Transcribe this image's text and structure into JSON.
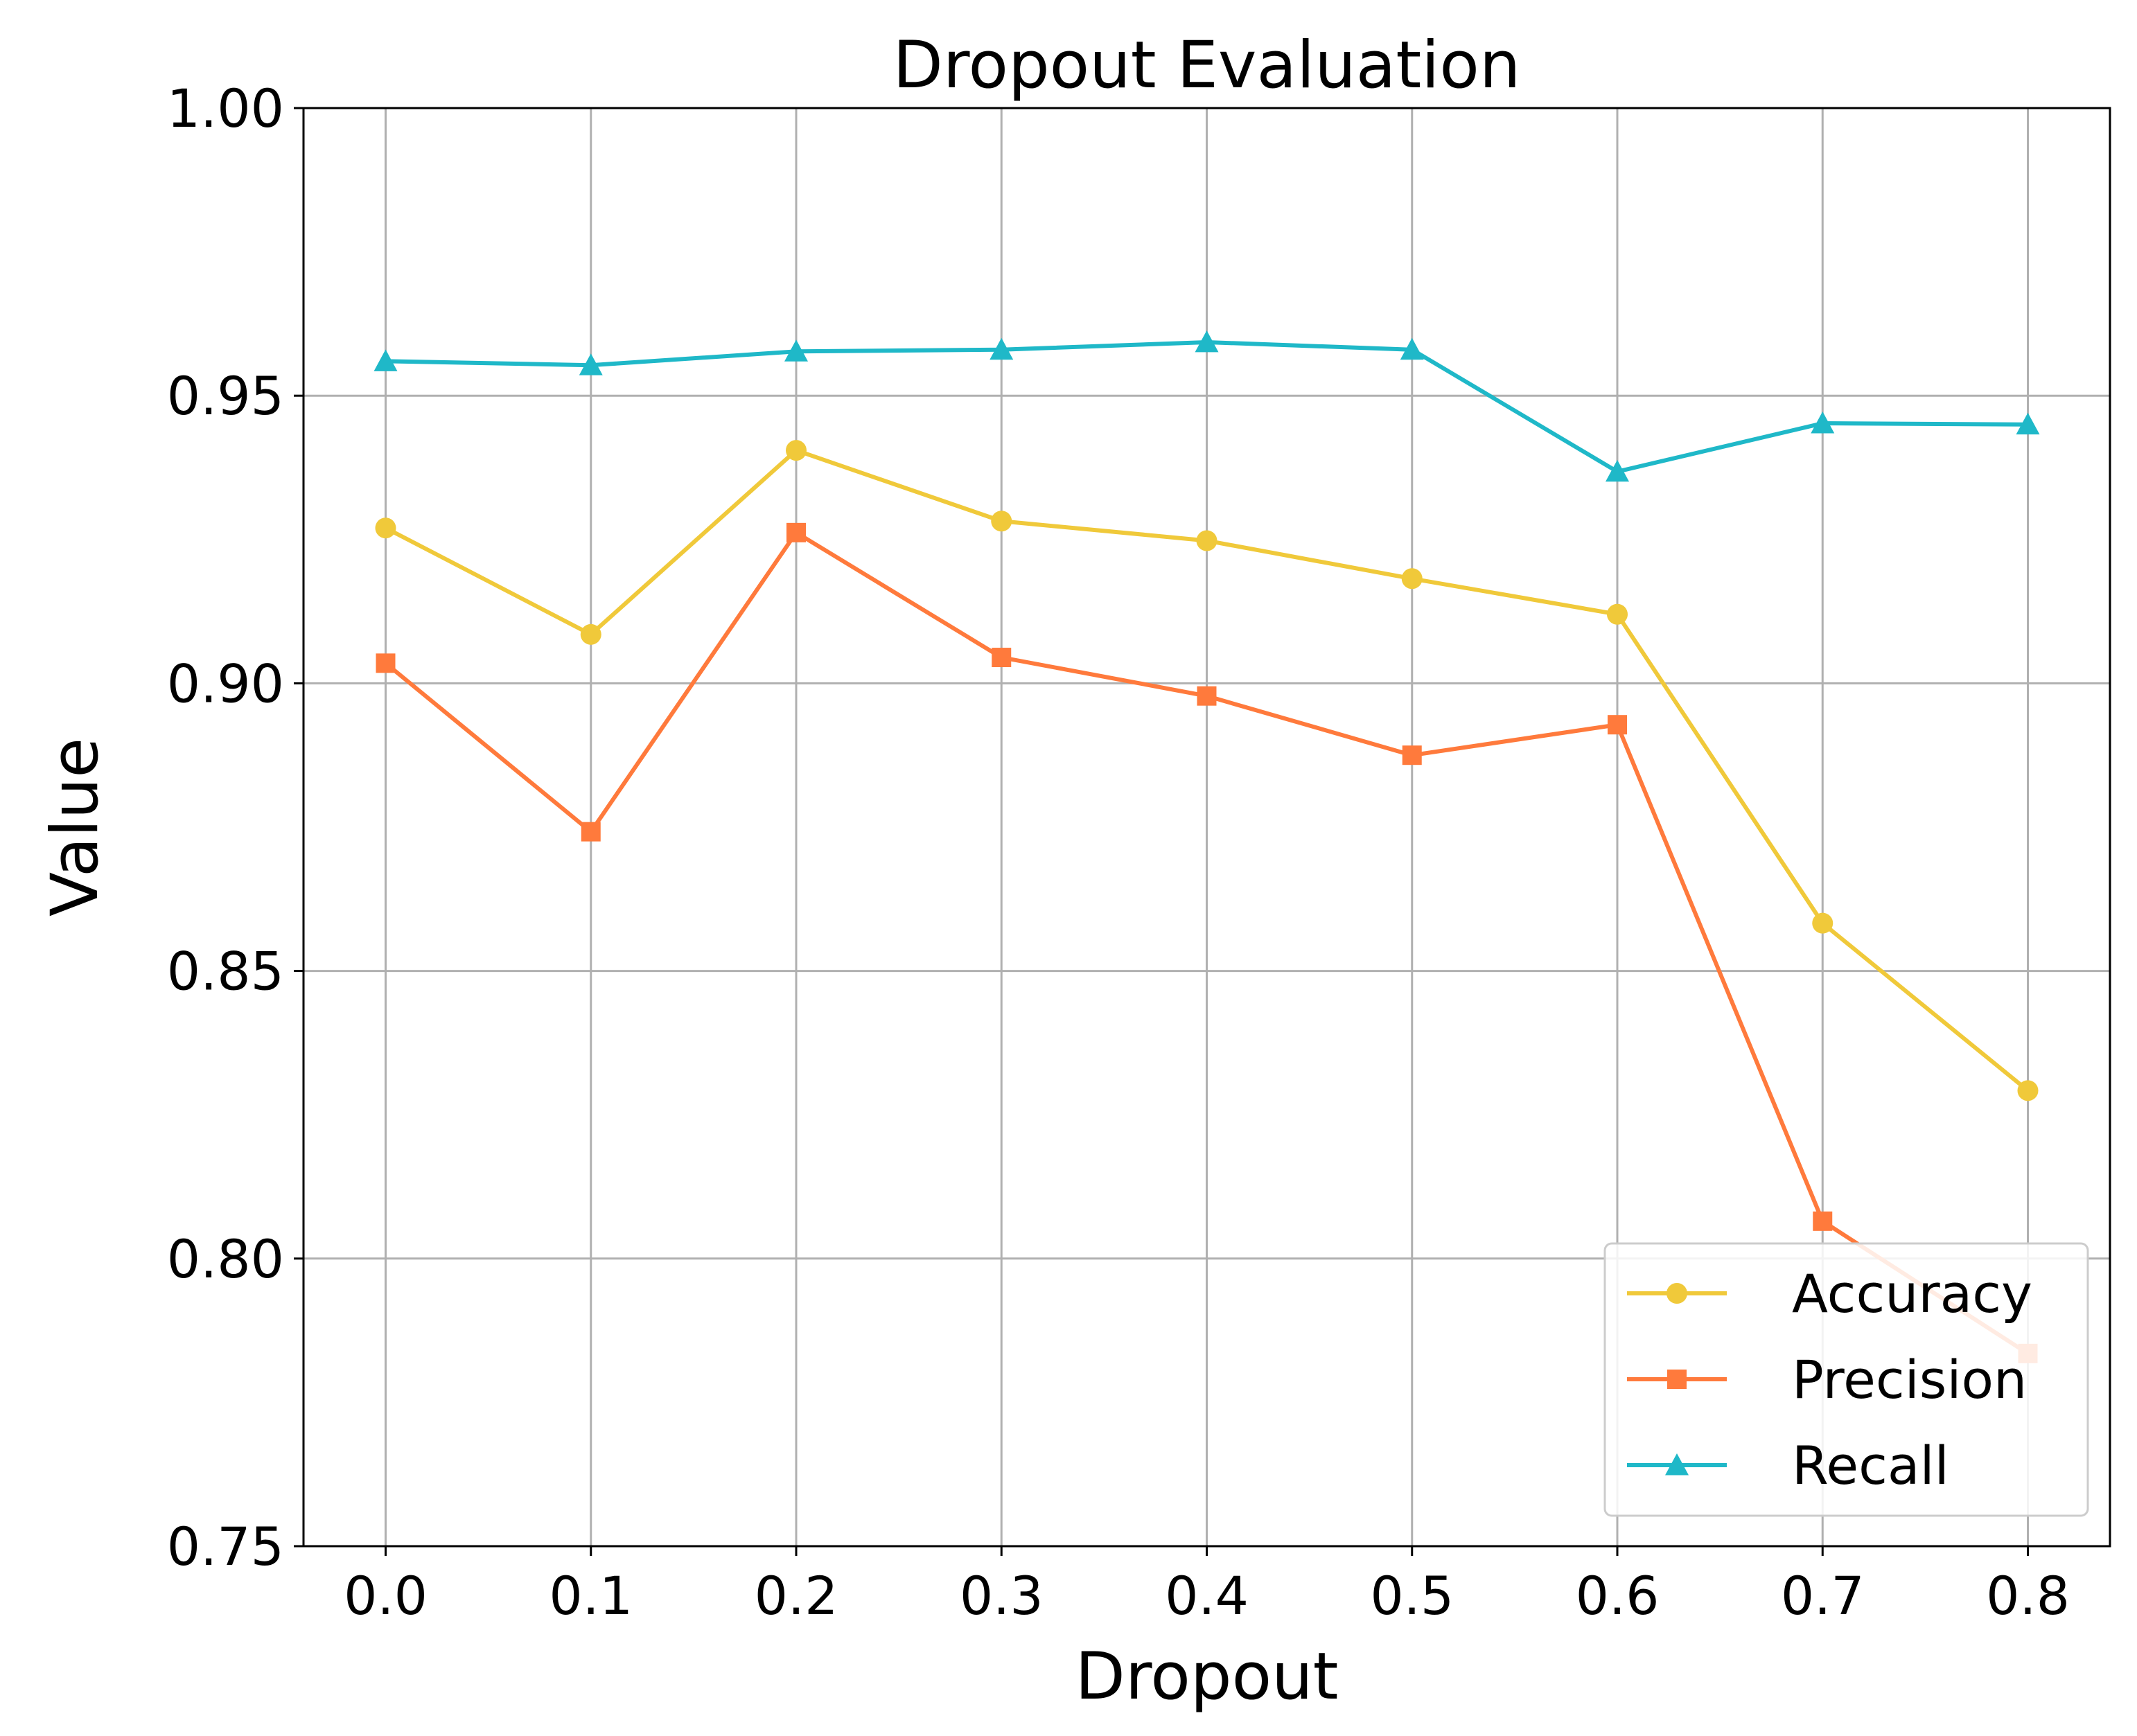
{
  "chart_data": {
    "type": "line",
    "title": "Dropout Evaluation",
    "xlabel": "Dropout",
    "ylabel": "Value",
    "x": [
      0.0,
      0.1,
      0.2,
      0.3,
      0.4,
      0.5,
      0.6,
      0.7,
      0.8
    ],
    "x_tick_labels": [
      "0.0",
      "0.1",
      "0.2",
      "0.3",
      "0.4",
      "0.5",
      "0.6",
      "0.7",
      "0.8"
    ],
    "y_ticks": [
      0.75,
      0.8,
      0.85,
      0.9,
      0.95,
      1.0
    ],
    "y_tick_labels": [
      "0.75",
      "0.80",
      "0.85",
      "0.90",
      "0.95",
      "1.00"
    ],
    "xlim": [
      -0.04,
      0.84
    ],
    "ylim": [
      0.75,
      1.0
    ],
    "grid": true,
    "legend_position": "lower right",
    "series": [
      {
        "name": "Accuracy",
        "color": "#F0C93A",
        "marker": "circle",
        "values": [
          0.927,
          0.9085,
          0.9405,
          0.9282,
          0.9248,
          0.9182,
          0.912,
          0.8583,
          0.8292
        ]
      },
      {
        "name": "Precision",
        "color": "#FF7A3C",
        "marker": "square",
        "values": [
          0.9035,
          0.8742,
          0.9262,
          0.9045,
          0.8978,
          0.8875,
          0.8928,
          0.8065,
          0.7835
        ]
      },
      {
        "name": "Recall",
        "color": "#1FB8C8",
        "marker": "triangle",
        "values": [
          0.956,
          0.9553,
          0.9577,
          0.958,
          0.9593,
          0.958,
          0.9368,
          0.9452,
          0.945
        ]
      }
    ]
  }
}
